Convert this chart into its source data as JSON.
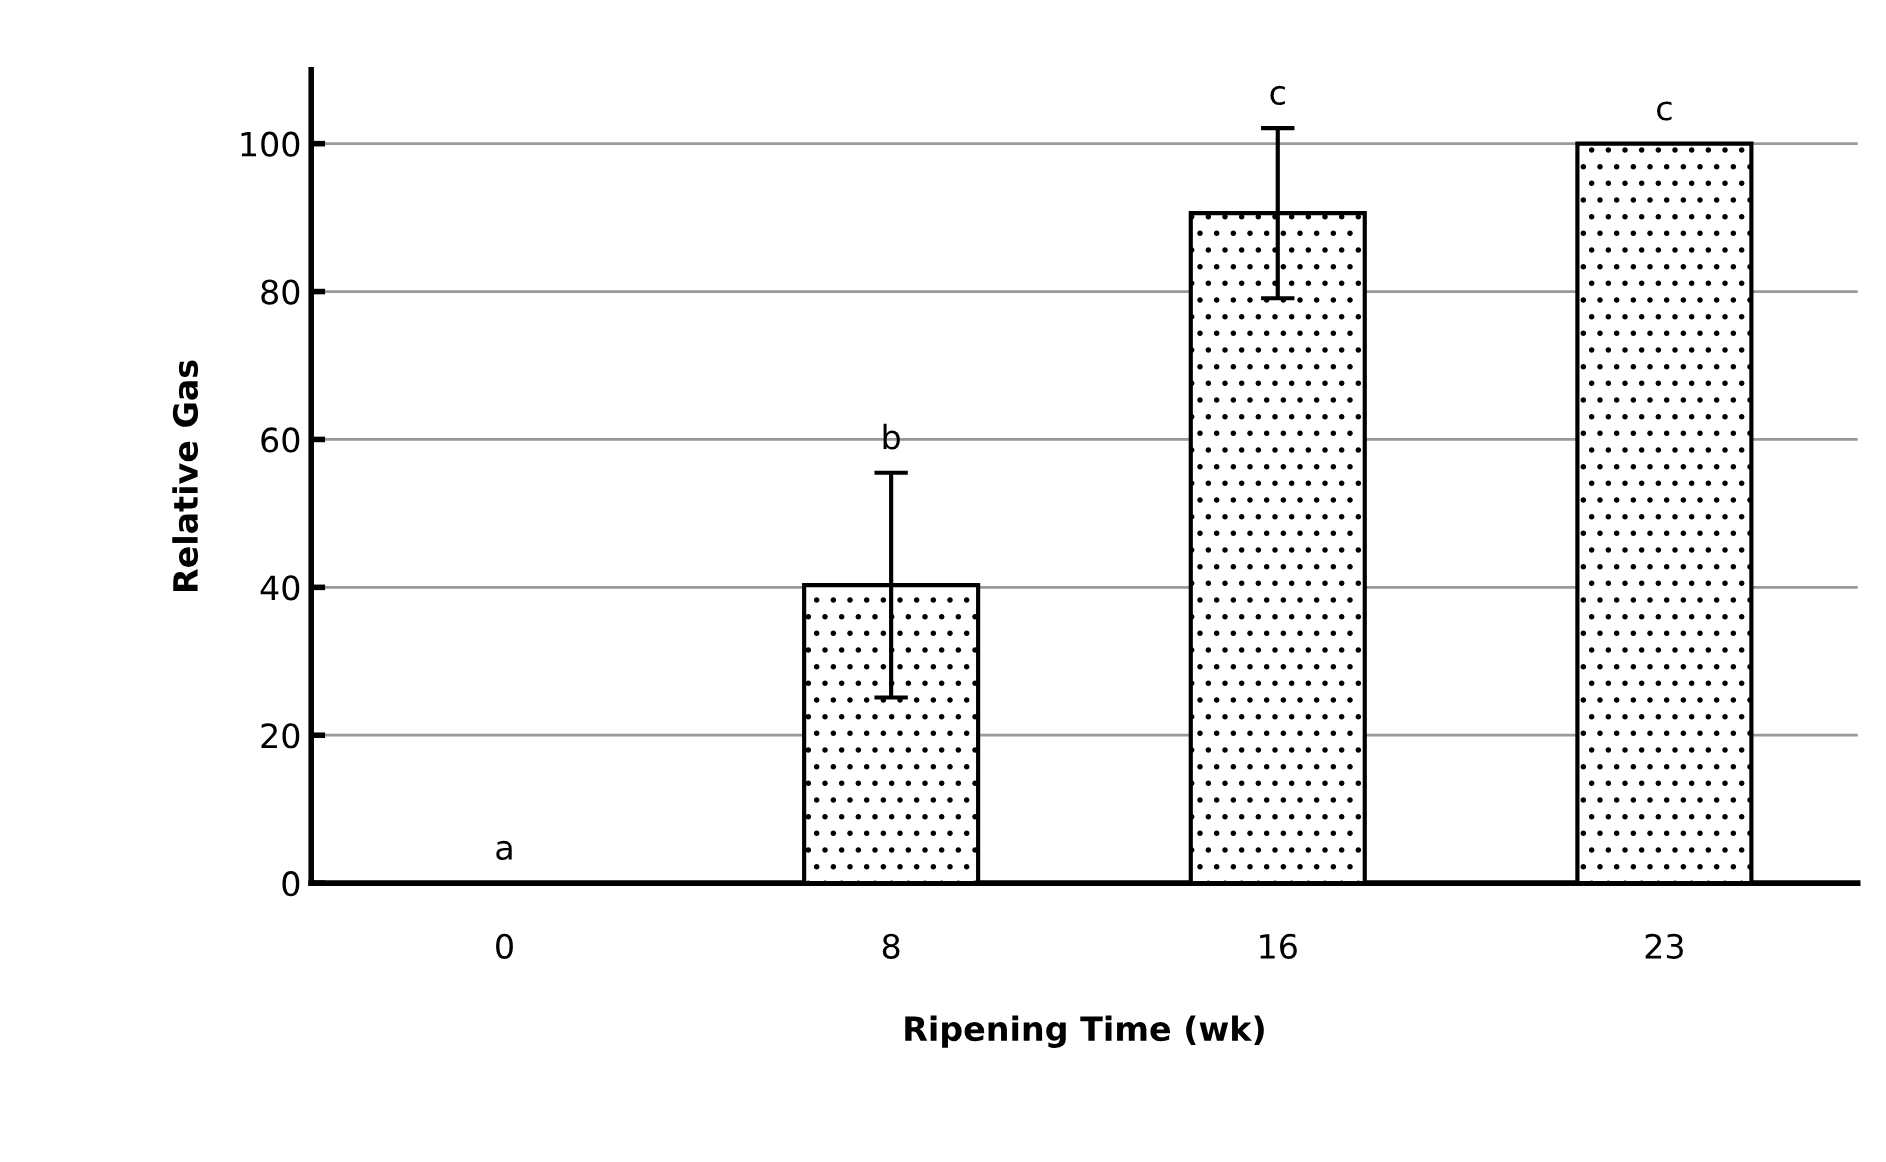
{
  "chart_data": {
    "type": "bar",
    "xlabel": "Ripening Time (wk)",
    "ylabel": "Relative Gas",
    "categories": [
      "0",
      "8",
      "16",
      "23"
    ],
    "values": [
      0,
      40.3,
      90.6,
      100
    ],
    "errors": [
      null,
      15.2,
      11.5,
      null
    ],
    "color": "#000000",
    "ylim": [
      0,
      110
    ],
    "yticks": [
      0,
      20,
      40,
      60,
      80,
      100
    ],
    "grid": "y",
    "annotations": [
      "a",
      "b",
      "c",
      "c"
    ]
  }
}
